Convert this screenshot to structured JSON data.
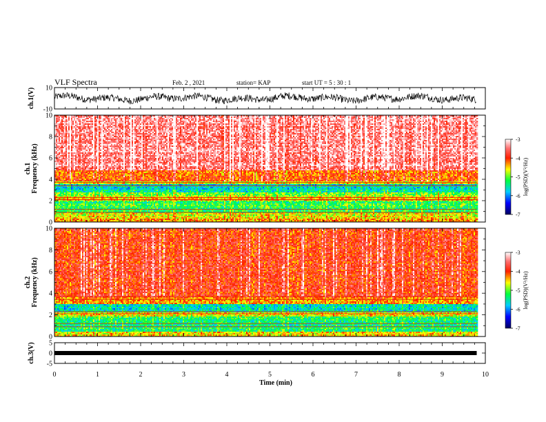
{
  "header": {
    "title": "VLF Spectra",
    "date": "Feb. 2 , 2021",
    "station": "station= KAP",
    "start": "start  UT =   5 : 30 : 1"
  },
  "chart_data": [
    {
      "type": "line",
      "panel": "ch1-waveform",
      "ylabel": "ch.1(V)",
      "ylim": [
        -10,
        10
      ],
      "yticks": [
        "10",
        "-10"
      ],
      "xlim": [
        0,
        10
      ],
      "x_extent": [
        0,
        9.8
      ]
    },
    {
      "type": "heatmap",
      "panel": "ch1-spectrogram",
      "ylabel": "ch.1\nFrequency (kHz)",
      "ylim": [
        0,
        10
      ],
      "yticks": [
        "0",
        "2",
        "4",
        "6",
        "8",
        "10"
      ],
      "xlim": [
        0,
        10
      ],
      "x_extent": [
        0,
        9.8
      ],
      "bands": [
        {
          "range": [
            0,
            0.3
          ],
          "level": -4.3
        },
        {
          "range": [
            0.3,
            0.8
          ],
          "level": -4.6
        },
        {
          "range": [
            0.8,
            2.0
          ],
          "level": -5.2
        },
        {
          "range": [
            2.0,
            2.4
          ],
          "level": -4.4
        },
        {
          "range": [
            2.4,
            2.8
          ],
          "level": -4.9
        },
        {
          "range": [
            2.8,
            3.5
          ],
          "level": -5.6
        },
        {
          "range": [
            3.5,
            3.8
          ],
          "level": -4.6
        },
        {
          "range": [
            3.8,
            4.8
          ],
          "level": -4.1
        },
        {
          "range": [
            4.8,
            10
          ],
          "level": -3.4
        }
      ],
      "colorbar": {
        "label": "log(PSD)(V²/Hz)",
        "range": [
          -7,
          -3
        ],
        "ticks": [
          "-3",
          "-4",
          "-5",
          "-6",
          "-7"
        ]
      }
    },
    {
      "type": "heatmap",
      "panel": "ch2-spectrogram",
      "ylabel": "ch.2\nFrequency (kHz)",
      "ylim": [
        0,
        10
      ],
      "yticks": [
        "0",
        "2",
        "4",
        "6",
        "8",
        "10"
      ],
      "xlim": [
        0,
        10
      ],
      "x_extent": [
        0,
        9.8
      ],
      "bands": [
        {
          "range": [
            0,
            0.4
          ],
          "level": -4.5
        },
        {
          "range": [
            0.4,
            1.9
          ],
          "level": -5.3
        },
        {
          "range": [
            1.9,
            2.2
          ],
          "level": -4.6
        },
        {
          "range": [
            2.2,
            3.0
          ],
          "level": -5.6
        },
        {
          "range": [
            3.0,
            3.6
          ],
          "level": -4.3
        },
        {
          "range": [
            3.6,
            10
          ],
          "level": -3.9
        }
      ],
      "colorbar": {
        "label": "log(PSD)(V²/Hz)",
        "range": [
          -7,
          -3
        ],
        "ticks": [
          "-3",
          "-4",
          "-5",
          "-6",
          "-7"
        ]
      }
    },
    {
      "type": "line",
      "panel": "ch3-waveform",
      "ylabel": "ch.3(V)",
      "ylim": [
        -5,
        5
      ],
      "yticks": [
        "5",
        "0",
        "-5"
      ],
      "xlim": [
        0,
        10
      ],
      "x_extent": [
        0,
        9.8
      ],
      "baseline": 0
    }
  ],
  "xaxis": {
    "label": "Time (min)",
    "ticks": [
      "0",
      "1",
      "2",
      "3",
      "4",
      "5",
      "6",
      "7",
      "8",
      "9",
      "10"
    ]
  },
  "colors": {
    "colormap": [
      "#000080",
      "#0000ff",
      "#00ffff",
      "#00ff00",
      "#ffff00",
      "#ff0000",
      "#ffffff"
    ]
  }
}
